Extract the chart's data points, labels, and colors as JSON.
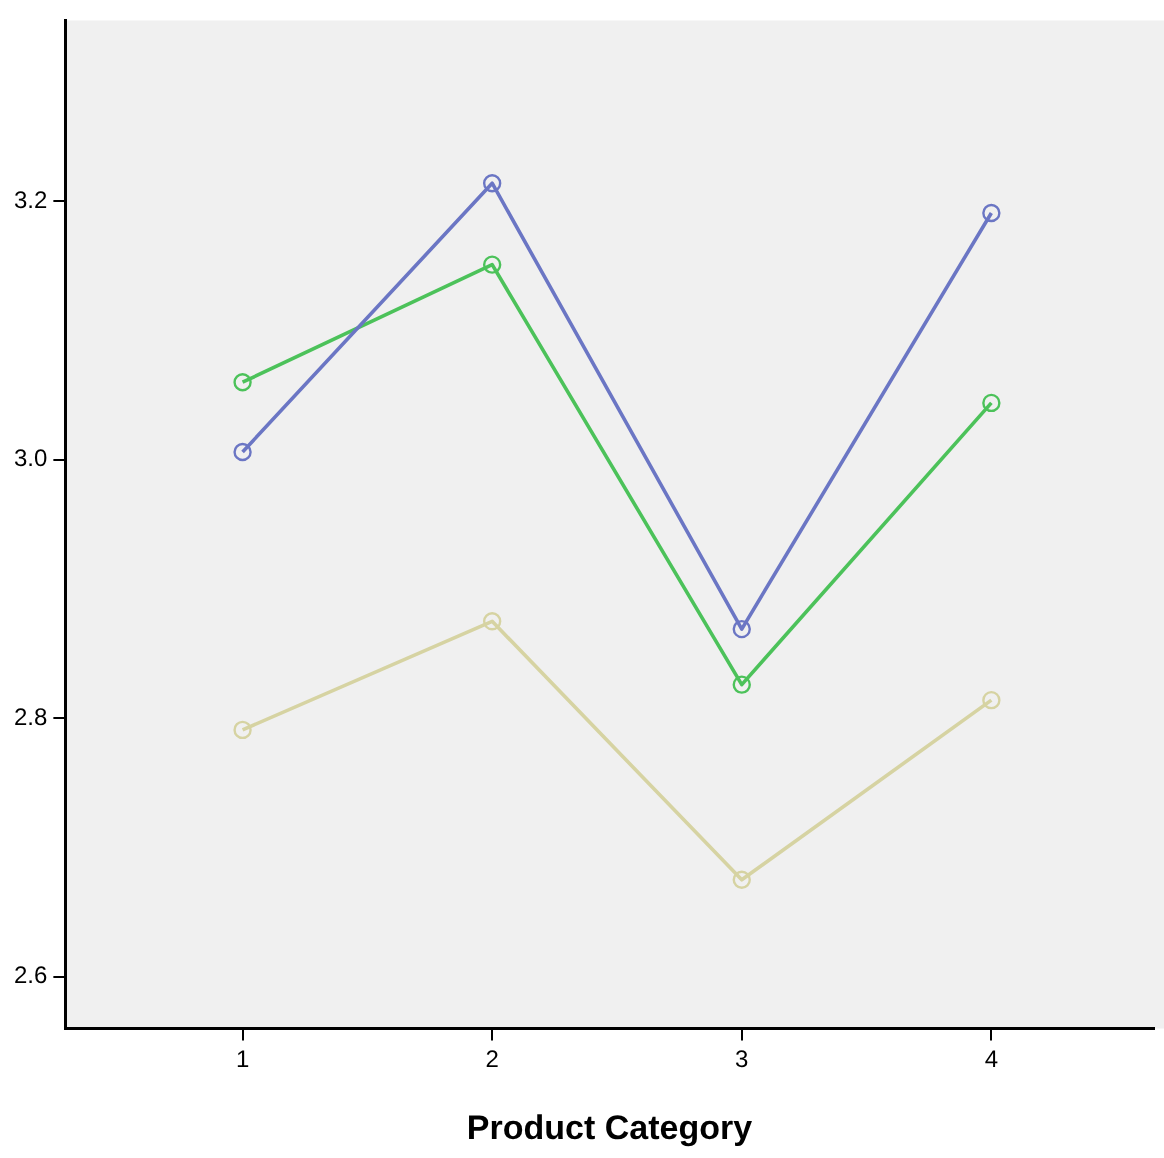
{
  "chart_data": {
    "type": "line",
    "xlabel": "Product Category",
    "x": [
      1,
      2,
      3,
      4
    ],
    "series": [
      {
        "color": "#6b76c4",
        "values": [
          3.006,
          3.214,
          2.869,
          3.191
        ]
      },
      {
        "color": "#4cc25a",
        "values": [
          3.06,
          3.151,
          2.826,
          3.044
        ]
      },
      {
        "color": "#d6d3a2",
        "values": [
          2.791,
          2.875,
          2.675,
          2.814
        ]
      }
    ],
    "xlim": [
      0.29,
      4.65
    ],
    "xticks": [
      1,
      2,
      3,
      4
    ],
    "ylim": [
      2.56,
      3.34
    ],
    "yticks": [
      {
        "value": 2.6,
        "label": "2.6"
      },
      {
        "value": 2.8,
        "label": "2.8"
      },
      {
        "value": 3.0,
        "label": "3.0"
      },
      {
        "value": 3.2,
        "label": "3.2"
      }
    ],
    "grid": false,
    "legend": false,
    "marker": "circle",
    "line_style": "solid"
  }
}
